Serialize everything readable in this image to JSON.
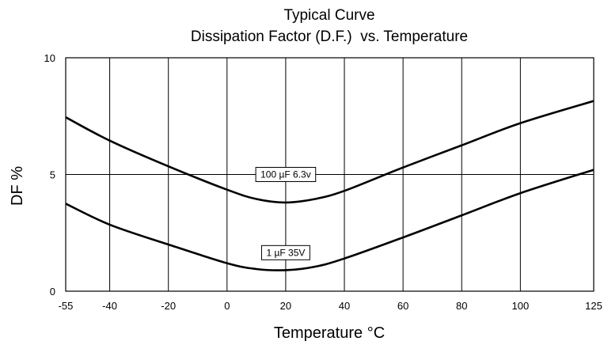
{
  "chart_data": {
    "type": "line",
    "title": "Typical Curve",
    "subtitle": "Dissipation Factor (D.F.)  vs. Temperature",
    "xlabel": "Temperature °C",
    "ylabel": "DF %",
    "xlim": [
      -55,
      125
    ],
    "ylim": [
      0,
      10
    ],
    "x_ticks": [
      -55,
      -40,
      -20,
      0,
      20,
      40,
      60,
      80,
      100,
      125
    ],
    "y_ticks": [
      0,
      5,
      10
    ],
    "grid": true,
    "series": [
      {
        "name": "100 µF   6.3v",
        "x": [
          -55,
          -40,
          -20,
          0,
          10,
          20,
          30,
          40,
          60,
          80,
          100,
          125
        ],
        "y": [
          7.45,
          6.45,
          5.35,
          4.35,
          3.95,
          3.8,
          3.95,
          4.3,
          5.3,
          6.25,
          7.2,
          8.15
        ],
        "label_at": [
          20,
          5.0
        ]
      },
      {
        "name": "1  µF   35V",
        "x": [
          -55,
          -40,
          -20,
          0,
          10,
          20,
          30,
          40,
          60,
          80,
          100,
          125
        ],
        "y": [
          3.75,
          2.85,
          2.0,
          1.2,
          0.95,
          0.9,
          1.05,
          1.4,
          2.3,
          3.25,
          4.2,
          5.2
        ],
        "label_at": [
          20,
          1.65
        ]
      }
    ]
  }
}
